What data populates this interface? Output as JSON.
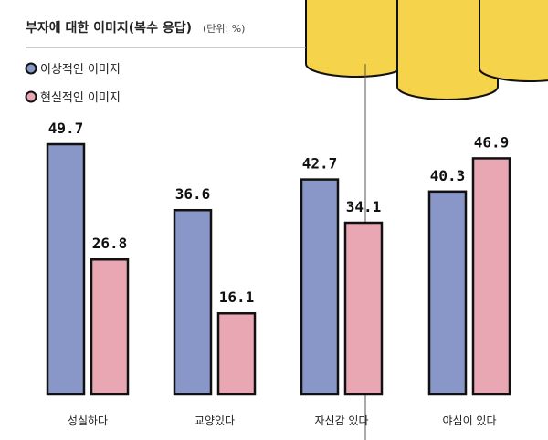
{
  "chart_data": {
    "type": "bar",
    "title": "부자에 대한 이미지(복수 응답)",
    "unit": "(단위: %)",
    "categories": [
      "성실하다",
      "교양있다",
      "자신감 있다",
      "야심이 있다"
    ],
    "series": [
      {
        "name": "이상적인 이미지",
        "color": "#8896c8",
        "values": [
          49.7,
          36.6,
          42.7,
          40.3
        ]
      },
      {
        "name": "현실적인 이미지",
        "color": "#e9a7b4",
        "values": [
          26.8,
          16.1,
          34.1,
          46.9
        ]
      }
    ],
    "ylim": [
      0,
      50
    ],
    "grid": false,
    "legend": "top-left",
    "decoration_color": "#f5d34b"
  }
}
